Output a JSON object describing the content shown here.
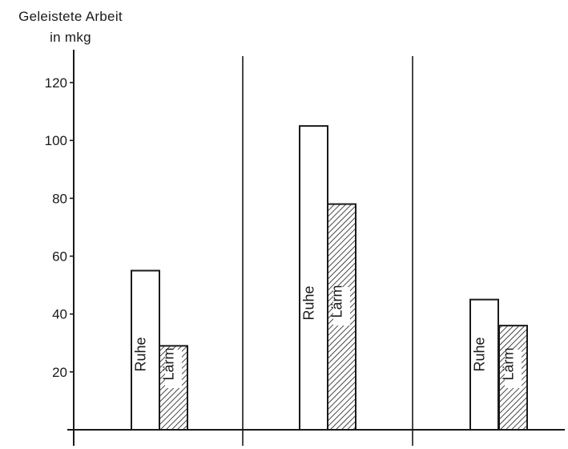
{
  "chart_data": {
    "type": "bar",
    "ylabel": "Geleistete Arbeit\nin mkg",
    "ylim": [
      0,
      130
    ],
    "yticks": [
      20,
      40,
      60,
      80,
      100,
      120
    ],
    "groups": 3,
    "series": [
      {
        "name": "Ruhe",
        "pattern": "plain",
        "values": [
          55,
          105,
          45
        ]
      },
      {
        "name": "Lärm",
        "pattern": "hatched",
        "values": [
          29,
          78,
          36
        ]
      }
    ],
    "grid": false,
    "legend": "none (bars labelled inside)"
  }
}
